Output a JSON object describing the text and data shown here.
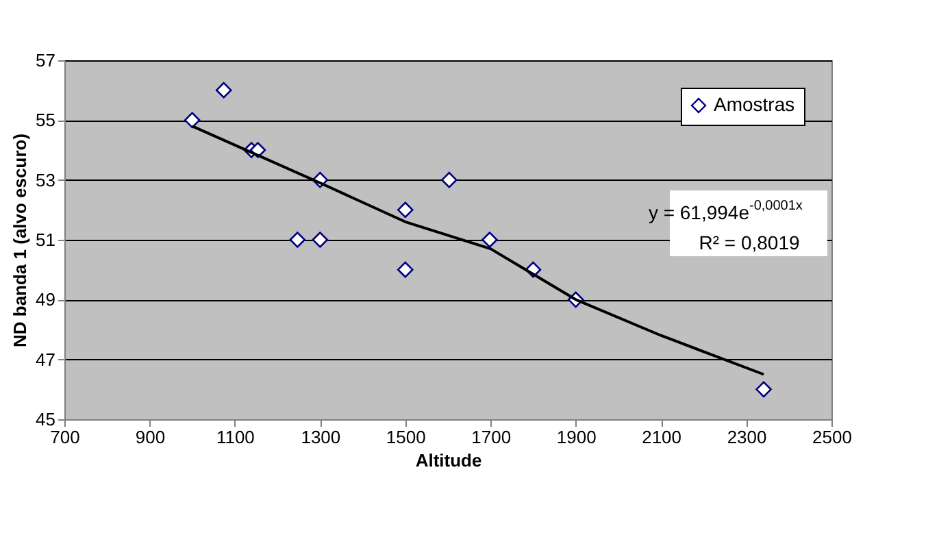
{
  "chart_data": {
    "type": "scatter",
    "xlabel": "Altitude",
    "ylabel": "ND banda 1  (alvo escuro)",
    "xlim": [
      700,
      2500
    ],
    "xticks": [
      700,
      900,
      1100,
      1300,
      1500,
      1700,
      1900,
      2100,
      2300,
      2500
    ],
    "ylim": [
      45,
      57
    ],
    "yticks": [
      45,
      47,
      49,
      51,
      53,
      55,
      57
    ],
    "grid": "y",
    "legend": "top right",
    "series": [
      {
        "name": "Amostras",
        "type": "scatter",
        "marker": "diamond",
        "color": "#000080",
        "x": [
          1000,
          1074,
          1139,
          1154,
          1247,
          1300,
          1300,
          1500,
          1500,
          1603,
          1698,
          1800,
          1900,
          2341
        ],
        "values": [
          55,
          56,
          54,
          54,
          51,
          53,
          51,
          52,
          50,
          53,
          51,
          50,
          49,
          46
        ]
      },
      {
        "type": "line",
        "color": "#000000",
        "line_style": "solid",
        "x": [
          1000,
          1300,
          1500,
          1700,
          1900,
          2100,
          2341
        ],
        "values": [
          54.8,
          52.9,
          51.6,
          50.7,
          49.0,
          47.8,
          46.5
        ]
      }
    ],
    "annotations": [
      "y = 61,994e$^{-0,0001x}$",
      "R² = 0,8019"
    ]
  }
}
